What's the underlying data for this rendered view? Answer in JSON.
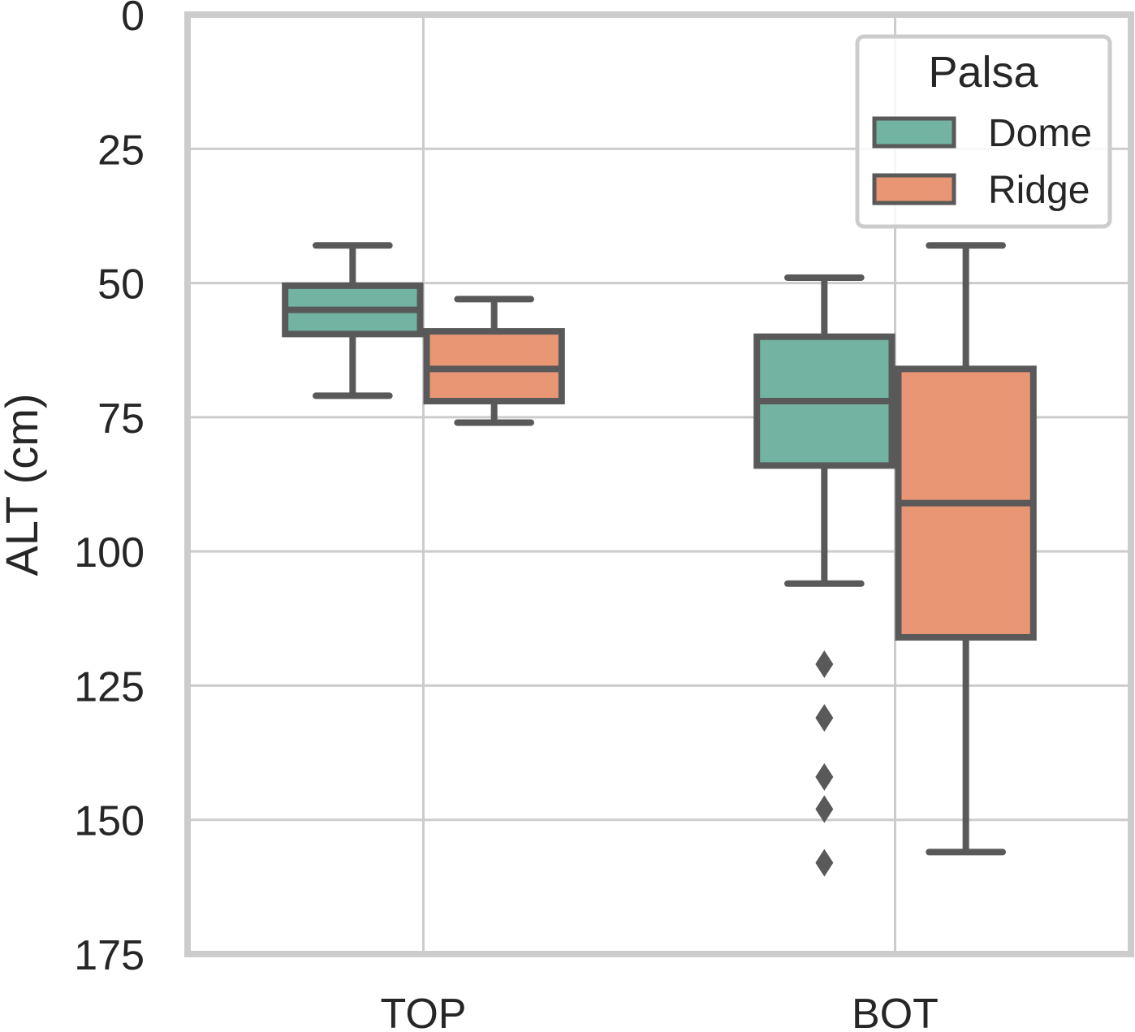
{
  "chart_data": {
    "type": "box",
    "xlabel": "",
    "ylabel": "ALT (cm)",
    "ylim": [
      175,
      0
    ],
    "y_inverted": true,
    "yticks": [
      0,
      25,
      50,
      75,
      100,
      125,
      150,
      175
    ],
    "categories": [
      "TOP",
      "BOT"
    ],
    "grid": true,
    "legend": {
      "title": "Palsa",
      "placement": "top-right"
    },
    "series": [
      {
        "name": "Dome",
        "color": "#72b4a1",
        "boxes": [
          {
            "category": "TOP",
            "whisker_low": 43,
            "q1": 50.5,
            "median": 55,
            "q3": 59.5,
            "whisker_high": 71,
            "outliers": []
          },
          {
            "category": "BOT",
            "whisker_low": 49,
            "q1": 60,
            "median": 72,
            "q3": 84,
            "whisker_high": 106,
            "outliers": [
              121,
              131,
              142,
              148,
              158
            ]
          }
        ]
      },
      {
        "name": "Ridge",
        "color": "#e89674",
        "boxes": [
          {
            "category": "TOP",
            "whisker_low": 53,
            "q1": 59,
            "median": 66,
            "q3": 72,
            "whisker_high": 76,
            "outliers": []
          },
          {
            "category": "BOT",
            "whisker_low": 43,
            "q1": 66,
            "median": 91,
            "q3": 116,
            "whisker_high": 156,
            "outliers": []
          }
        ]
      }
    ],
    "edge_color": "#595959",
    "grid_color": "#cccccc",
    "frame_color": "#cccccc"
  }
}
